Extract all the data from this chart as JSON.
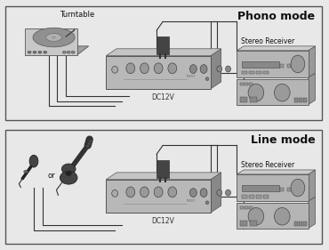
{
  "bg_color": "#e8e8e8",
  "panel_bg": "#f0f0f0",
  "border_color": "#333333",
  "title_phono": "Phono mode",
  "title_line": "Line mode",
  "label_turntable": "Turntable",
  "label_stereo1": "Stereo Receiver",
  "label_stereo2": "Stereo Receiver",
  "label_dc1": "DC12V",
  "label_dc2": "DC12V",
  "label_or": "or",
  "title_fontsize": 9,
  "label_fontsize": 6,
  "small_fontsize": 5.5
}
